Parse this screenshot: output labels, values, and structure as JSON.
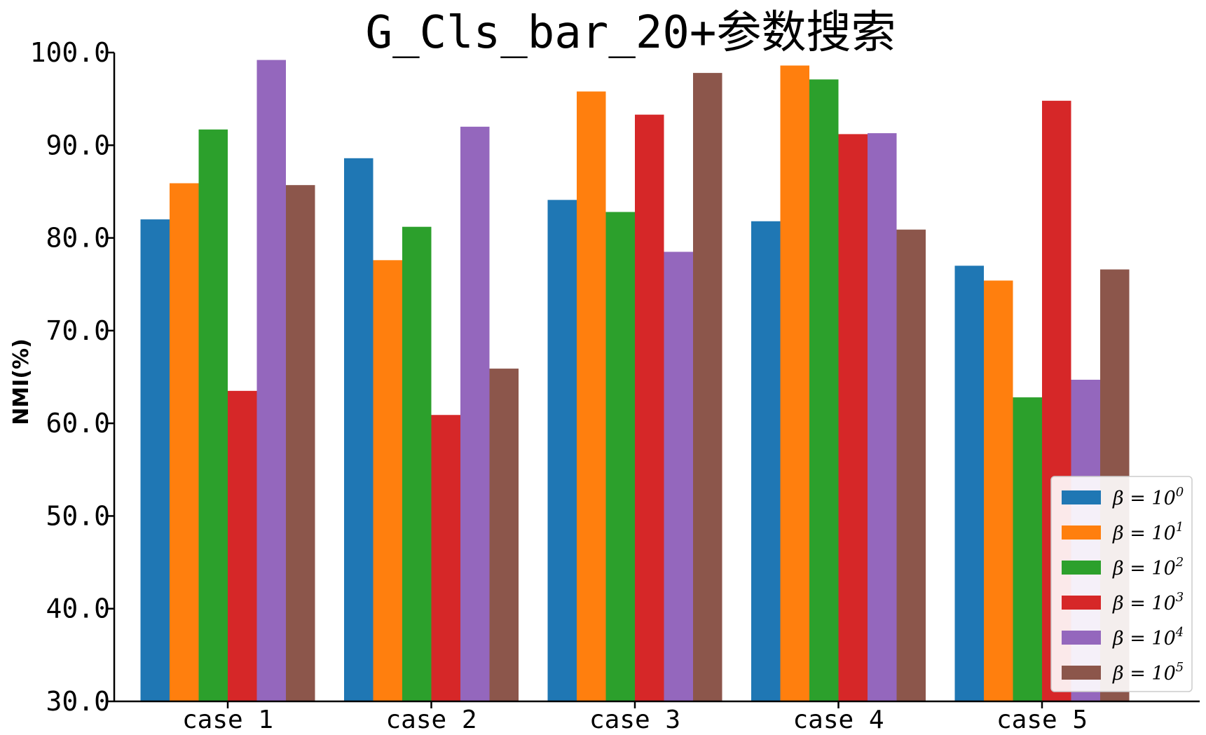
{
  "chart_data": {
    "type": "bar",
    "title": "G_Cls_bar_20+参数搜索",
    "xlabel": "",
    "ylabel": "NMI(%)",
    "ylim": [
      30,
      100
    ],
    "yticks": [
      30,
      40,
      50,
      60,
      70,
      80,
      90,
      100
    ],
    "ytick_labels": [
      "30.0",
      "40.0",
      "50.0",
      "60.0",
      "70.0",
      "80.0",
      "90.0",
      "100.0"
    ],
    "categories": [
      "case 1",
      "case 2",
      "case 3",
      "case 4",
      "case 5"
    ],
    "legend_position": "bottom-right",
    "grid": false,
    "series": [
      {
        "name": "β = 10",
        "sup": "0",
        "color": "#1f77b4",
        "values": [
          82.0,
          88.6,
          84.1,
          81.8,
          77.0
        ]
      },
      {
        "name": "β = 10",
        "sup": "1",
        "color": "#ff7f0e",
        "values": [
          85.9,
          77.6,
          95.8,
          98.6,
          75.4
        ]
      },
      {
        "name": "β = 10",
        "sup": "2",
        "color": "#2ca02c",
        "values": [
          91.7,
          81.2,
          82.8,
          97.1,
          62.8
        ]
      },
      {
        "name": "β = 10",
        "sup": "3",
        "color": "#d62728",
        "values": [
          63.5,
          60.9,
          93.3,
          91.2,
          94.8
        ]
      },
      {
        "name": "β = 10",
        "sup": "4",
        "color": "#9467bd",
        "values": [
          99.2,
          92.0,
          78.5,
          91.3,
          64.7
        ]
      },
      {
        "name": "β = 10",
        "sup": "5",
        "color": "#8c564b",
        "values": [
          85.7,
          65.9,
          97.8,
          80.9,
          76.6
        ]
      }
    ]
  }
}
